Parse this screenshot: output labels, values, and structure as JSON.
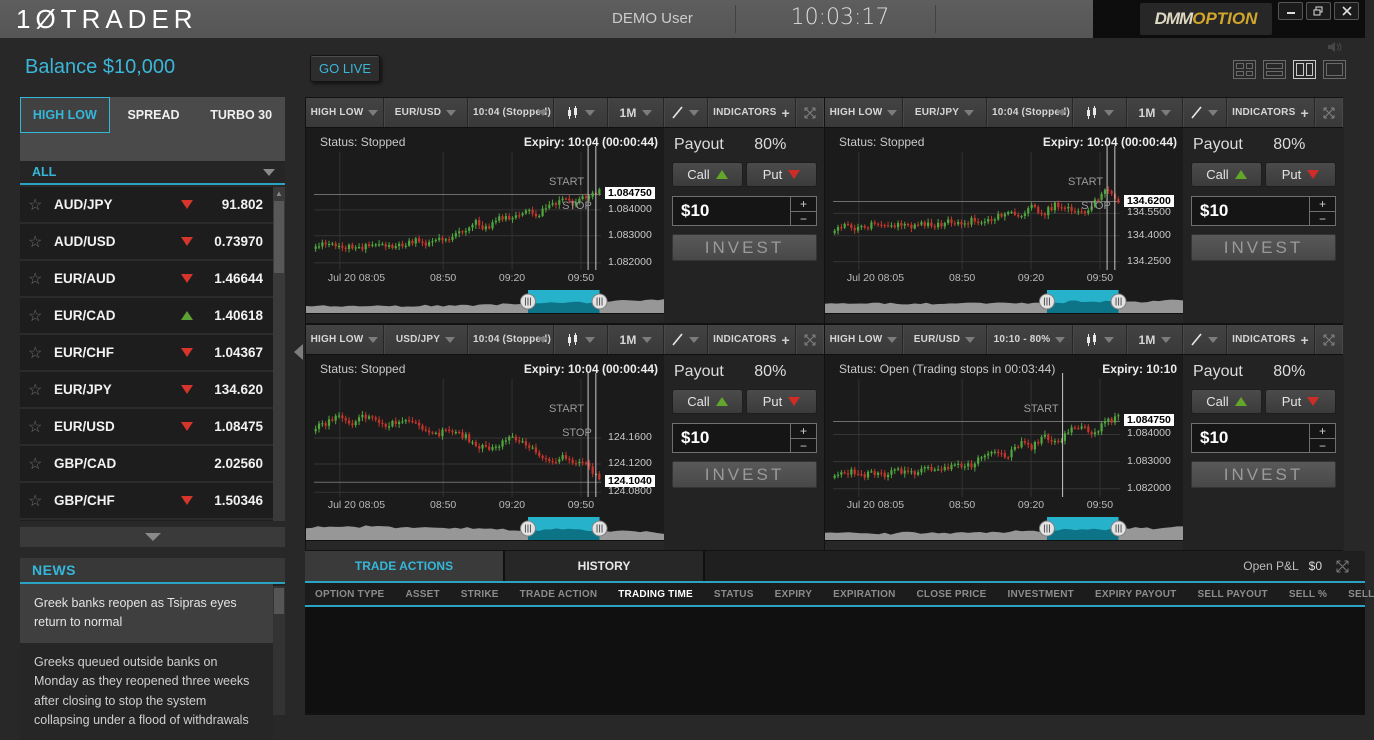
{
  "app": {
    "logo": "1ØTRADER",
    "user": "DEMO User",
    "clock": "10:03:17",
    "brand_a": "DMM",
    "brand_b": "OPTION",
    "accent": "#35b7d9"
  },
  "header": {
    "balance": "Balance $10,000",
    "go_live": "GO LIVE",
    "layout_icons": [
      "grid-2x2",
      "rows-2",
      "cols-2",
      "single"
    ],
    "active_layout_index": 2
  },
  "sidebar": {
    "tabs": [
      {
        "label": "HIGH LOW",
        "active": true
      },
      {
        "label": "SPREAD",
        "active": false
      },
      {
        "label": "TURBO 30",
        "active": false
      }
    ],
    "filter": "ALL",
    "assets": [
      {
        "pair": "AUD/JPY",
        "dir": "down",
        "price": "91.802"
      },
      {
        "pair": "AUD/USD",
        "dir": "down",
        "price": "0.73970"
      },
      {
        "pair": "EUR/AUD",
        "dir": "down",
        "price": "1.46644"
      },
      {
        "pair": "EUR/CAD",
        "dir": "up",
        "price": "1.40618"
      },
      {
        "pair": "EUR/CHF",
        "dir": "down",
        "price": "1.04367"
      },
      {
        "pair": "EUR/JPY",
        "dir": "down",
        "price": "134.620"
      },
      {
        "pair": "EUR/USD",
        "dir": "down",
        "price": "1.08475"
      },
      {
        "pair": "GBP/CAD",
        "dir": "none",
        "price": "2.02560"
      },
      {
        "pair": "GBP/CHF",
        "dir": "down",
        "price": "1.50346"
      }
    ],
    "news": {
      "title": "NEWS",
      "selected_index": 0,
      "items": [
        "Greek banks reopen as Tsipras eyes return to normal",
        "Greeks queued outside banks on Monday as they reopened three weeks after closing to stop the system collapsing under a flood of withdrawals"
      ]
    }
  },
  "panels": [
    {
      "type": "HIGH LOW",
      "pair": "EUR/USD",
      "expiry_select": "10:04 (Stopped)",
      "interval": "1M",
      "indicators": "INDICATORS",
      "status": "Status: Stopped",
      "expiry_text": "Expiry: 10:04 (00:00:44)",
      "payout_label": "Payout",
      "payout": "80%",
      "call": "Call",
      "put": "Put",
      "amount": "$10",
      "invest": "INVEST",
      "chart": {
        "type": "candlestick",
        "scale": [
          {
            "label": "1.084750",
            "f": 0.36,
            "hl": true
          },
          {
            "label": "1.084000",
            "f": 0.49
          },
          {
            "label": "1.083000",
            "f": 0.71
          },
          {
            "label": "1.082000",
            "f": 0.94
          }
        ],
        "xlabels": [
          {
            "label": "Jul 20 08:05",
            "f": 0.09,
            "align": "left"
          },
          {
            "label": "08:50",
            "f": 0.45
          },
          {
            "label": "09:20",
            "f": 0.69
          },
          {
            "label": "09:50",
            "f": 0.93
          }
        ],
        "markers": [
          {
            "label": "START",
            "x": 0.955
          },
          {
            "label": "STOP",
            "x": 0.982
          }
        ],
        "anchors": [
          0.8,
          0.78,
          0.82,
          0.79,
          0.81,
          0.77,
          0.8,
          0.78,
          0.75,
          0.77,
          0.72,
          0.74,
          0.66,
          0.6,
          0.66,
          0.54,
          0.58,
          0.48,
          0.54,
          0.44,
          0.4,
          0.46,
          0.36,
          0.32
        ],
        "nav_sel": [
          0.62,
          0.82
        ],
        "seed": 11
      }
    },
    {
      "type": "HIGH LOW",
      "pair": "EUR/JPY",
      "expiry_select": "10:04 (Stopped)",
      "interval": "1M",
      "indicators": "INDICATORS",
      "status": "Status: Stopped",
      "expiry_text": "Expiry: 10:04 (00:00:44)",
      "payout_label": "Payout",
      "payout": "80%",
      "call": "Call",
      "put": "Put",
      "amount": "$10",
      "invest": "INVEST",
      "chart": {
        "type": "candlestick",
        "scale": [
          {
            "label": "134.6200",
            "f": 0.42,
            "hl": true
          },
          {
            "label": "134.5500",
            "f": 0.52
          },
          {
            "label": "134.4000",
            "f": 0.71
          },
          {
            "label": "134.2500",
            "f": 0.93
          }
        ],
        "xlabels": [
          {
            "label": "Jul 20 08:05",
            "f": 0.09,
            "align": "left"
          },
          {
            "label": "08:50",
            "f": 0.45
          },
          {
            "label": "09:20",
            "f": 0.69
          },
          {
            "label": "09:50",
            "f": 0.93
          }
        ],
        "markers": [
          {
            "label": "START",
            "x": 0.955
          },
          {
            "label": "STOP",
            "x": 0.982
          }
        ],
        "anchors": [
          0.66,
          0.63,
          0.66,
          0.62,
          0.65,
          0.61,
          0.64,
          0.6,
          0.63,
          0.59,
          0.62,
          0.58,
          0.6,
          0.55,
          0.5,
          0.55,
          0.47,
          0.52,
          0.44,
          0.48,
          0.52,
          0.44,
          0.3,
          0.42
        ],
        "nav_sel": [
          0.62,
          0.82
        ],
        "seed": 22
      }
    },
    {
      "type": "HIGH LOW",
      "pair": "USD/JPY",
      "expiry_select": "10:04 (Stopped)",
      "interval": "1M",
      "indicators": "INDICATORS",
      "status": "Status: Stopped",
      "expiry_text": "Expiry: 10:04 (00:00:44)",
      "payout_label": "Payout",
      "payout": "80%",
      "call": "Call",
      "put": "Put",
      "amount": "$10",
      "invest": "INVEST",
      "chart": {
        "type": "candlestick",
        "scale": [
          {
            "label": "124.1600",
            "f": 0.5
          },
          {
            "label": "124.1200",
            "f": 0.72
          },
          {
            "label": "124.1040",
            "f": 0.875,
            "hl": true
          },
          {
            "label": "124.0800",
            "f": 0.96
          }
        ],
        "xlabels": [
          {
            "label": "Jul 20 08:05",
            "f": 0.09,
            "align": "left"
          },
          {
            "label": "08:50",
            "f": 0.45
          },
          {
            "label": "09:20",
            "f": 0.69
          },
          {
            "label": "09:50",
            "f": 0.93
          }
        ],
        "markers": [
          {
            "label": "START",
            "x": 0.955
          },
          {
            "label": "STOP",
            "x": 0.982
          }
        ],
        "anchors": [
          0.42,
          0.36,
          0.32,
          0.37,
          0.31,
          0.35,
          0.39,
          0.34,
          0.37,
          0.42,
          0.46,
          0.42,
          0.48,
          0.55,
          0.6,
          0.55,
          0.5,
          0.56,
          0.62,
          0.72,
          0.66,
          0.74,
          0.7,
          0.87
        ],
        "nav_sel": [
          0.62,
          0.82
        ],
        "seed": 33
      }
    },
    {
      "type": "HIGH LOW",
      "pair": "EUR/USD",
      "expiry_select": "10:10 - 80%",
      "interval": "1M",
      "indicators": "INDICATORS",
      "status": "Status: Open (Trading stops in 00:03:44)",
      "expiry_text": "Expiry: 10:10",
      "payout_label": "Payout",
      "payout": "80%",
      "call": "Call",
      "put": "Put",
      "amount": "$10",
      "invest": "INVEST",
      "chart": {
        "type": "candlestick",
        "scale": [
          {
            "label": "1.084750",
            "f": 0.36,
            "hl": true
          },
          {
            "label": "1.084000",
            "f": 0.47
          },
          {
            "label": "1.083000",
            "f": 0.7
          },
          {
            "label": "1.082000",
            "f": 0.93
          }
        ],
        "xlabels": [
          {
            "label": "Jul 20 08:05",
            "f": 0.09,
            "align": "left"
          },
          {
            "label": "08:50",
            "f": 0.45
          },
          {
            "label": "09:20",
            "f": 0.69
          },
          {
            "label": "09:50",
            "f": 0.93
          }
        ],
        "markers": [
          {
            "label": "START",
            "x": 0.8
          }
        ],
        "anchors": [
          0.8,
          0.78,
          0.82,
          0.79,
          0.81,
          0.77,
          0.8,
          0.78,
          0.75,
          0.77,
          0.72,
          0.74,
          0.66,
          0.6,
          0.66,
          0.54,
          0.58,
          0.48,
          0.54,
          0.44,
          0.4,
          0.46,
          0.36,
          0.32
        ],
        "nav_sel": [
          0.62,
          0.82
        ],
        "seed": 44
      }
    }
  ],
  "bottom": {
    "tabs": [
      {
        "label": "TRADE ACTIONS",
        "active": true
      },
      {
        "label": "HISTORY",
        "active": false
      }
    ],
    "open_pl_label": "Open P&L",
    "open_pl_value": "$0",
    "columns": [
      "OPTION TYPE",
      "ASSET",
      "STRIKE",
      "TRADE ACTION",
      "TRADING TIME",
      "STATUS",
      "EXPIRY",
      "EXPIRATION",
      "CLOSE PRICE",
      "INVESTMENT",
      "EXPIRY PAYOUT",
      "SELL PAYOUT",
      "SELL %",
      "SELL"
    ],
    "sorted_column": "TRADING TIME"
  }
}
